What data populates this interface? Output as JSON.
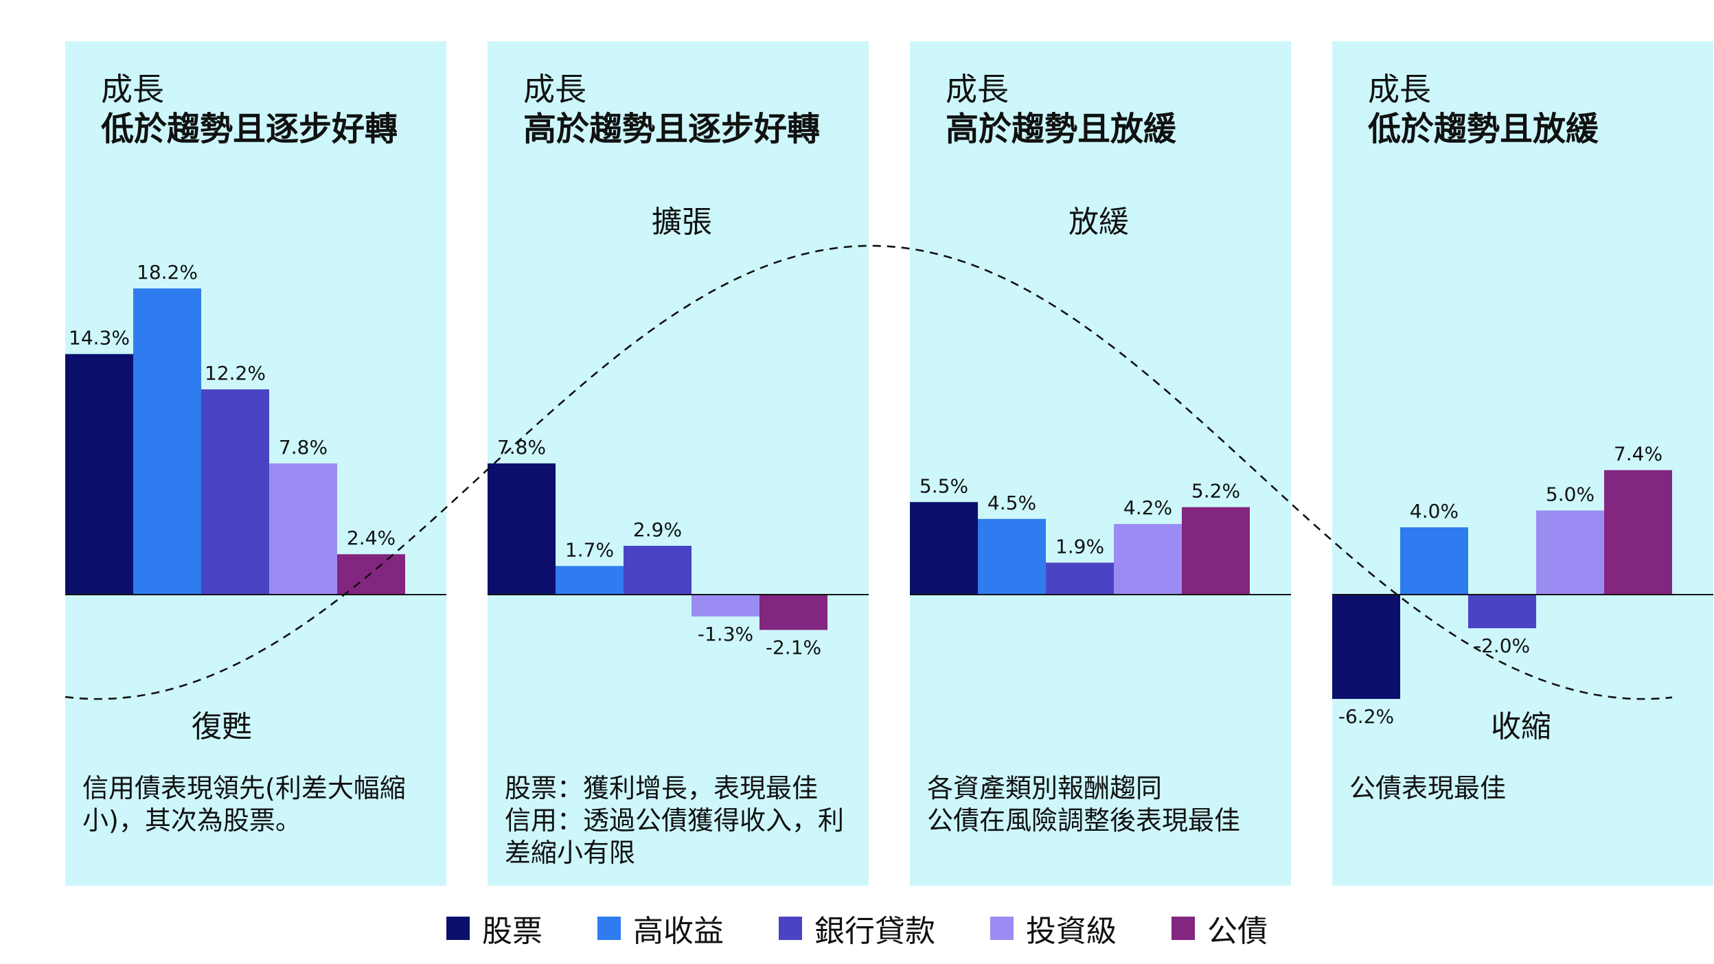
{
  "colors": {
    "panel_bg": "#cdf7fb",
    "series": [
      "#0b0f6b",
      "#2f7bf0",
      "#4a44c4",
      "#9b8cf3",
      "#83267f"
    ]
  },
  "legend": {
    "items": [
      {
        "label": "股票",
        "color": "#0b0f6b"
      },
      {
        "label": "高收益",
        "color": "#2f7bf0"
      },
      {
        "label": "銀行貸款",
        "color": "#4a44c4"
      },
      {
        "label": "投資級",
        "color": "#9b8cf3"
      },
      {
        "label": "公債",
        "color": "#83267f"
      }
    ]
  },
  "chart_data": {
    "type": "bar",
    "series_names": [
      "股票",
      "高收益",
      "銀行貸款",
      "投資級",
      "公債"
    ],
    "unit": "%",
    "panels": [
      {
        "title_line1": "成長",
        "title_line2": "低於趨勢且逐步好轉",
        "phase": "復甦",
        "description": [
          "信用債表現領先(利差大幅縮",
          "小)，其次為股票。"
        ],
        "values": [
          14.3,
          18.2,
          12.2,
          7.8,
          2.4
        ],
        "labels": [
          "14.3%",
          "18.2%",
          "12.2%",
          "7.8%",
          "2.4%"
        ]
      },
      {
        "title_line1": "成長",
        "title_line2": "高於趨勢且逐步好轉",
        "phase": "擴張",
        "description": [
          "股票：獲利增長，表現最佳",
          "信用：透過公債獲得收入，利",
          "差縮小有限"
        ],
        "values": [
          7.8,
          1.7,
          2.9,
          -1.3,
          -2.1
        ],
        "labels": [
          "7.8%",
          "1.7%",
          "2.9%",
          "-1.3%",
          "-2.1%"
        ]
      },
      {
        "title_line1": "成長",
        "title_line2": "高於趨勢且放緩",
        "phase": "放緩",
        "description": [
          "各資產類別報酬趨同",
          "公債在風險調整後表現最佳"
        ],
        "values": [
          5.5,
          4.5,
          1.9,
          4.2,
          5.2
        ],
        "labels": [
          "5.5%",
          "4.5%",
          "1.9%",
          "4.2%",
          "5.2%"
        ]
      },
      {
        "title_line1": "成長",
        "title_line2": "低於趨勢且放緩",
        "phase": "收縮",
        "description": [
          "公債表現最佳"
        ],
        "values": [
          -6.2,
          4.0,
          -2.0,
          5.0,
          7.4
        ],
        "labels": [
          "-6.2%",
          "4.0%",
          "-2.0%",
          "5.0%",
          "7.4%"
        ]
      }
    ]
  }
}
